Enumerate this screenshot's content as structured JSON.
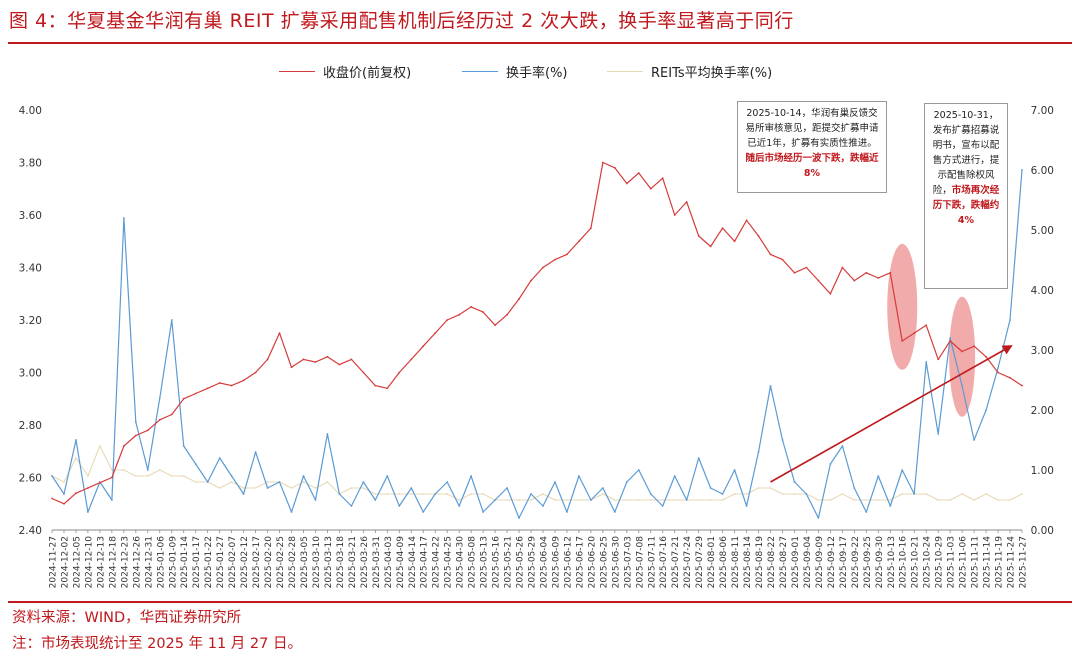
{
  "title": "图 4：华夏基金华润有巢 REIT 扩募采用配售机制后经历过 2 次大跌，换手率显著高于同行",
  "source": "资料来源：WIND，华西证券研究所",
  "footnote": "注：市场表现统计至 2025 年 11 月 27 日。",
  "colors": {
    "accent": "#c0191d",
    "price": "#d63b3b",
    "turnover": "#5b9bd5",
    "reits_avg": "#e8d9b5",
    "ellipse": "#ee8f8f"
  },
  "annotations": [
    {
      "text": "2025-10-14，华润有巢反馈交易所审核意见，距提交扩募申请已近1年，扩募有实质性推进。",
      "highlight": "随后市场经历一波下跌，跌幅近8%"
    },
    {
      "text": "2025-10-31，发布扩募招募说明书，宣布以配售方式进行，提示配售除权风险，",
      "highlight": "市场再次经历下跌，跌幅约4%"
    }
  ],
  "chart_data": {
    "type": "line",
    "legend": [
      "收盘价(前复权)",
      "换手率(%)",
      "REITs平均换手率(%)"
    ],
    "legend_position": "top",
    "ylim_left": [
      2.4,
      4.0
    ],
    "yticks_left": [
      "2.40",
      "2.60",
      "2.80",
      "3.00",
      "3.20",
      "3.40",
      "3.60",
      "3.80",
      "4.00"
    ],
    "ylim_right": [
      0,
      7
    ],
    "yticks_right": [
      "0.00",
      "1.00",
      "2.00",
      "3.00",
      "4.00",
      "5.00",
      "6.00",
      "7.00"
    ],
    "x_tick_labels": [
      "2024-11-27",
      "2024-12-02",
      "2024-12-05",
      "2024-12-10",
      "2024-12-13",
      "2024-12-18",
      "2024-12-23",
      "2024-12-26",
      "2024-12-31",
      "2025-01-06",
      "2025-01-09",
      "2025-01-14",
      "2025-01-17",
      "2025-01-22",
      "2025-01-27",
      "2025-02-07",
      "2025-02-12",
      "2025-02-17",
      "2025-02-20",
      "2025-02-25",
      "2025-02-28",
      "2025-03-05",
      "2025-03-10",
      "2025-03-13",
      "2025-03-18",
      "2025-03-21",
      "2025-03-26",
      "2025-03-31",
      "2025-04-03",
      "2025-04-09",
      "2025-04-14",
      "2025-04-17",
      "2025-04-22",
      "2025-04-25",
      "2025-04-30",
      "2025-05-08",
      "2025-05-13",
      "2025-05-16",
      "2025-05-21",
      "2025-05-26",
      "2025-05-29",
      "2025-06-04",
      "2025-06-09",
      "2025-06-12",
      "2025-06-17",
      "2025-06-20",
      "2025-06-25",
      "2025-06-30",
      "2025-07-03",
      "2025-07-08",
      "2025-07-11",
      "2025-07-16",
      "2025-07-21",
      "2025-07-24",
      "2025-07-29",
      "2025-08-01",
      "2025-08-06",
      "2025-08-11",
      "2025-08-14",
      "2025-08-19",
      "2025-08-22",
      "2025-08-27",
      "2025-09-01",
      "2025-09-04",
      "2025-09-09",
      "2025-09-12",
      "2025-09-17",
      "2025-09-22",
      "2025-09-25",
      "2025-09-30",
      "2025-10-13",
      "2025-10-16",
      "2025-10-21",
      "2025-10-24",
      "2025-10-29",
      "2025-11-03",
      "2025-11-06",
      "2025-11-11",
      "2025-11-14",
      "2025-11-19",
      "2025-11-24",
      "2025-11-27"
    ],
    "series": [
      {
        "name": "收盘价(前复权)",
        "axis": "left",
        "values": [
          2.52,
          2.5,
          2.54,
          2.56,
          2.58,
          2.6,
          2.72,
          2.76,
          2.78,
          2.82,
          2.84,
          2.9,
          2.92,
          2.94,
          2.96,
          2.95,
          2.97,
          3.0,
          3.05,
          3.15,
          3.02,
          3.05,
          3.04,
          3.06,
          3.03,
          3.05,
          3.0,
          2.95,
          2.94,
          3.0,
          3.05,
          3.1,
          3.15,
          3.2,
          3.22,
          3.25,
          3.23,
          3.18,
          3.22,
          3.28,
          3.35,
          3.4,
          3.43,
          3.45,
          3.5,
          3.55,
          3.8,
          3.78,
          3.72,
          3.76,
          3.7,
          3.74,
          3.6,
          3.65,
          3.52,
          3.48,
          3.55,
          3.5,
          3.58,
          3.52,
          3.45,
          3.43,
          3.38,
          3.4,
          3.35,
          3.3,
          3.4,
          3.35,
          3.38,
          3.36,
          3.38,
          3.12,
          3.15,
          3.18,
          3.05,
          3.12,
          3.08,
          3.1,
          3.06,
          3.0,
          2.98,
          2.95
        ]
      },
      {
        "name": "换手率(%)",
        "axis": "right",
        "values": [
          0.9,
          0.6,
          1.5,
          0.3,
          0.8,
          0.5,
          5.2,
          1.8,
          1.0,
          2.2,
          3.5,
          1.4,
          1.1,
          0.8,
          1.2,
          0.9,
          0.6,
          1.3,
          0.7,
          0.8,
          0.3,
          0.9,
          0.5,
          1.6,
          0.6,
          0.4,
          0.8,
          0.5,
          0.9,
          0.4,
          0.7,
          0.3,
          0.6,
          0.8,
          0.4,
          0.9,
          0.3,
          0.5,
          0.7,
          0.2,
          0.6,
          0.4,
          0.8,
          0.3,
          0.9,
          0.5,
          0.7,
          0.3,
          0.8,
          1.0,
          0.6,
          0.4,
          0.9,
          0.5,
          1.2,
          0.7,
          0.6,
          1.0,
          0.4,
          1.3,
          2.4,
          1.5,
          0.8,
          0.6,
          0.2,
          1.1,
          1.4,
          0.7,
          0.3,
          0.9,
          0.4,
          1.0,
          0.6,
          2.8,
          1.6,
          3.2,
          2.4,
          1.5,
          2.0,
          2.7,
          3.5,
          6.0
        ]
      },
      {
        "name": "REITs平均换手率(%)",
        "axis": "right",
        "values": [
          0.9,
          0.8,
          1.2,
          0.9,
          1.4,
          1.0,
          1.0,
          0.9,
          0.9,
          1.0,
          0.9,
          0.9,
          0.8,
          0.8,
          0.7,
          0.8,
          0.7,
          0.7,
          0.8,
          0.8,
          0.7,
          0.8,
          0.7,
          0.8,
          0.6,
          0.7,
          0.7,
          0.6,
          0.6,
          0.6,
          0.6,
          0.6,
          0.6,
          0.6,
          0.5,
          0.6,
          0.6,
          0.5,
          0.5,
          0.5,
          0.5,
          0.6,
          0.5,
          0.5,
          0.5,
          0.5,
          0.6,
          0.5,
          0.5,
          0.5,
          0.5,
          0.5,
          0.5,
          0.5,
          0.5,
          0.5,
          0.5,
          0.6,
          0.6,
          0.7,
          0.7,
          0.6,
          0.6,
          0.6,
          0.5,
          0.5,
          0.6,
          0.5,
          0.5,
          0.5,
          0.5,
          0.6,
          0.6,
          0.6,
          0.5,
          0.5,
          0.6,
          0.5,
          0.6,
          0.5,
          0.5,
          0.6
        ]
      }
    ],
    "trend_arrow": {
      "from": {
        "x_label": "2025-08-22",
        "y_right": 0.8
      },
      "to": {
        "x_label": "2025-11-24",
        "y_right": 3.0
      }
    },
    "highlighted_regions": [
      {
        "x_label": "2025-10-16"
      },
      {
        "x_label": "2025-11-06"
      }
    ],
    "grid": false
  }
}
